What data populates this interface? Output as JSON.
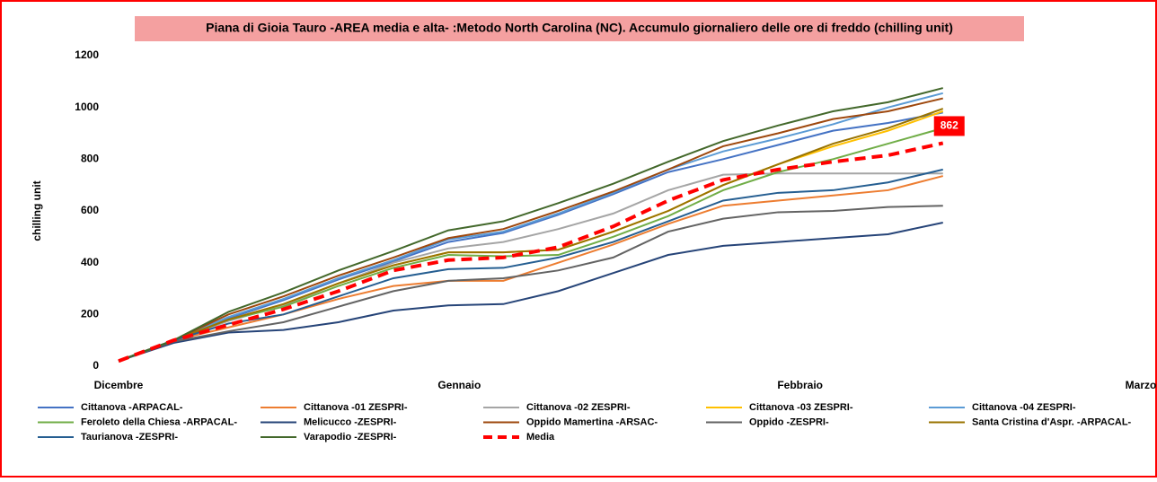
{
  "chart_data": {
    "type": "line",
    "title": "Piana di Gioia Tauro -AREA media e alta- :Metodo North Carolina (NC).  Accumulo  giornaliero delle ore di freddo (chilling unit)",
    "y_label": "chilling unit",
    "x": [
      0,
      5,
      10,
      15,
      20,
      25,
      30,
      35,
      40,
      45,
      50,
      55,
      60,
      65,
      70,
      75
    ],
    "xlim": [
      0,
      93
    ],
    "xticks": [
      {
        "value": 0,
        "label": "Dicembre"
      },
      {
        "value": 31,
        "label": "Gennaio"
      },
      {
        "value": 62,
        "label": "Febbraio"
      },
      {
        "value": 93,
        "label": "Marzo"
      }
    ],
    "ylim": [
      0,
      1200
    ],
    "yticks": [
      0,
      200,
      400,
      600,
      800,
      1000,
      1200
    ],
    "series": [
      {
        "name": "Cittanova -ARPACAL-",
        "color": "#4472c4",
        "values": [
          20,
          100,
          185,
          255,
          335,
          405,
          480,
          515,
          585,
          665,
          750,
          800,
          855,
          910,
          940,
          980
        ]
      },
      {
        "name": "Cittanova -01 ZESPRI-",
        "color": "#ed7d31",
        "values": [
          20,
          100,
          150,
          200,
          260,
          310,
          330,
          330,
          400,
          470,
          550,
          620,
          640,
          660,
          680,
          735
        ]
      },
      {
        "name": "Cittanova -02 ZESPRI-",
        "color": "#a5a5a5",
        "values": [
          20,
          100,
          175,
          235,
          320,
          400,
          455,
          480,
          530,
          590,
          680,
          740,
          745,
          745,
          745,
          745
        ]
      },
      {
        "name": "Cittanova -03 ZESPRI-",
        "color": "#ffc000",
        "values": [
          20,
          100,
          180,
          240,
          320,
          390,
          440,
          440,
          450,
          520,
          600,
          700,
          780,
          850,
          910,
          985
        ]
      },
      {
        "name": "Cittanova -04 ZESPRI-",
        "color": "#5b9bd5",
        "values": [
          20,
          100,
          190,
          260,
          340,
          410,
          490,
          520,
          590,
          670,
          760,
          830,
          880,
          935,
          1000,
          1055
        ]
      },
      {
        "name": "Feroleto della Chiesa -ARPACAL-",
        "color": "#70ad47",
        "values": [
          20,
          100,
          180,
          230,
          310,
          380,
          430,
          425,
          430,
          500,
          580,
          680,
          750,
          800,
          860,
          920
        ]
      },
      {
        "name": "Melicucco -ZESPRI-",
        "color": "#264478",
        "values": [
          20,
          90,
          130,
          140,
          170,
          215,
          235,
          240,
          290,
          360,
          430,
          465,
          480,
          495,
          510,
          555
        ]
      },
      {
        "name": "Oppido Mamertina -ARSAC-",
        "color": "#9e480e",
        "values": [
          20,
          100,
          200,
          270,
          350,
          420,
          495,
          530,
          600,
          675,
          760,
          850,
          900,
          955,
          985,
          1035
        ]
      },
      {
        "name": "Oppido -ZESPRI-",
        "color": "#636363",
        "values": [
          20,
          95,
          135,
          170,
          230,
          290,
          330,
          340,
          370,
          420,
          520,
          570,
          595,
          600,
          615,
          620
        ]
      },
      {
        "name": "Santa Cristina d'Aspr. -ARPACAL-",
        "color": "#997300",
        "values": [
          20,
          100,
          180,
          240,
          320,
          390,
          440,
          440,
          450,
          520,
          600,
          700,
          780,
          860,
          920,
          995
        ]
      },
      {
        "name": "Taurianova -ZESPRI-",
        "color": "#255e91",
        "values": [
          20,
          100,
          165,
          200,
          270,
          340,
          375,
          380,
          420,
          480,
          560,
          640,
          670,
          680,
          710,
          760
        ]
      },
      {
        "name": "Varapodio -ZESPRI-",
        "color": "#43682b",
        "values": [
          20,
          100,
          210,
          285,
          370,
          445,
          525,
          560,
          630,
          705,
          790,
          870,
          930,
          985,
          1020,
          1075
        ]
      },
      {
        "name": "Media",
        "color": "#ff0000",
        "dashed": true,
        "values": [
          20,
          100,
          160,
          220,
          290,
          370,
          410,
          420,
          460,
          540,
          640,
          720,
          760,
          790,
          815,
          862
        ]
      }
    ]
  }
}
